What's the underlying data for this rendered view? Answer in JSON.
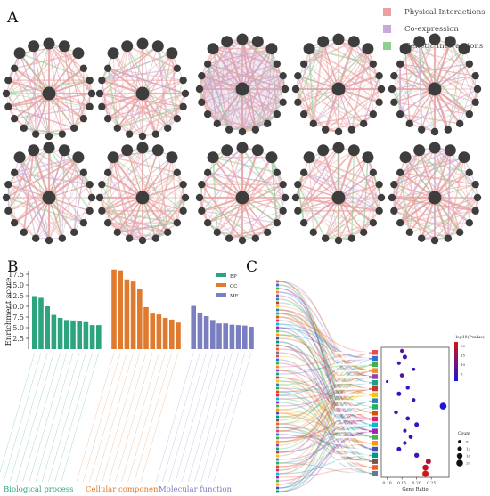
{
  "panels": {
    "a": "A",
    "b": "B",
    "c": "C"
  },
  "legend_a": [
    {
      "label": "Physical Interactions",
      "color": "#e8a0a0"
    },
    {
      "label": "Co-expression",
      "color": "#c8a8d8"
    },
    {
      "label": "Genetic Interactions",
      "color": "#8fd08f"
    }
  ],
  "networks_count": 10,
  "chart_data": [
    {
      "type": "bar",
      "ylabel": "Enrichment score",
      "ylim": [
        0,
        17.5
      ],
      "yticks": [
        2.5,
        5.0,
        7.5,
        10.0,
        12.5,
        15.0,
        17.5
      ],
      "legend": [
        {
          "name": "BP",
          "color": "#2ca57f"
        },
        {
          "name": "CC",
          "color": "#e07a2e"
        },
        {
          "name": "MF",
          "color": "#7b7ec1"
        }
      ],
      "groups": [
        {
          "name": "Biological process",
          "color": "#2ca57f",
          "values": [
            12.4,
            12.0,
            10.0,
            8.0,
            7.3,
            6.8,
            6.7,
            6.6,
            6.3,
            5.6,
            5.6
          ]
        },
        {
          "name": "Cellular component",
          "color": "#e07a2e",
          "values": [
            18.6,
            18.4,
            16.3,
            15.8,
            14.0,
            9.8,
            8.3,
            8.1,
            7.3,
            6.9,
            6.2
          ]
        },
        {
          "name": "Molecular function",
          "color": "#7b7ec1",
          "values": [
            10.1,
            8.5,
            7.7,
            6.8,
            6.0,
            6.0,
            5.7,
            5.6,
            5.5,
            5.2
          ]
        }
      ]
    },
    {
      "type": "scatter",
      "xlabel": "Gene Ratio",
      "xticks": [
        "0.10",
        "0.15",
        "0.20",
        "0.25"
      ],
      "colorbar_title": "-log10(Pvalue)",
      "colorbar_ticks": [
        "20",
        "15",
        "10",
        "5"
      ],
      "size_title": "Count",
      "size_ticks": [
        "8",
        "12",
        "16",
        "20"
      ],
      "points": [
        {
          "x": 0.15,
          "y": 1,
          "count": 10,
          "p": 12
        },
        {
          "x": 0.16,
          "y": 2,
          "count": 12,
          "p": 10
        },
        {
          "x": 0.14,
          "y": 3,
          "count": 9,
          "p": 11
        },
        {
          "x": 0.19,
          "y": 4,
          "count": 8,
          "p": 9
        },
        {
          "x": 0.15,
          "y": 5,
          "count": 11,
          "p": 12
        },
        {
          "x": 0.1,
          "y": 6,
          "count": 6,
          "p": 8
        },
        {
          "x": 0.17,
          "y": 7,
          "count": 10,
          "p": 10
        },
        {
          "x": 0.14,
          "y": 8,
          "count": 12,
          "p": 9
        },
        {
          "x": 0.19,
          "y": 9,
          "count": 9,
          "p": 10
        },
        {
          "x": 0.29,
          "y": 10,
          "count": 20,
          "p": 8
        },
        {
          "x": 0.13,
          "y": 11,
          "count": 10,
          "p": 9
        },
        {
          "x": 0.17,
          "y": 12,
          "count": 11,
          "p": 10
        },
        {
          "x": 0.2,
          "y": 13,
          "count": 12,
          "p": 9
        },
        {
          "x": 0.16,
          "y": 14,
          "count": 9,
          "p": 11
        },
        {
          "x": 0.18,
          "y": 15,
          "count": 11,
          "p": 10
        },
        {
          "x": 0.16,
          "y": 16,
          "count": 10,
          "p": 12
        },
        {
          "x": 0.14,
          "y": 17,
          "count": 12,
          "p": 9
        },
        {
          "x": 0.2,
          "y": 18,
          "count": 13,
          "p": 10
        },
        {
          "x": 0.24,
          "y": 19,
          "count": 15,
          "p": 18
        },
        {
          "x": 0.23,
          "y": 20,
          "count": 17,
          "p": 19
        },
        {
          "x": 0.23,
          "y": 21,
          "count": 18,
          "p": 20
        }
      ]
    }
  ]
}
